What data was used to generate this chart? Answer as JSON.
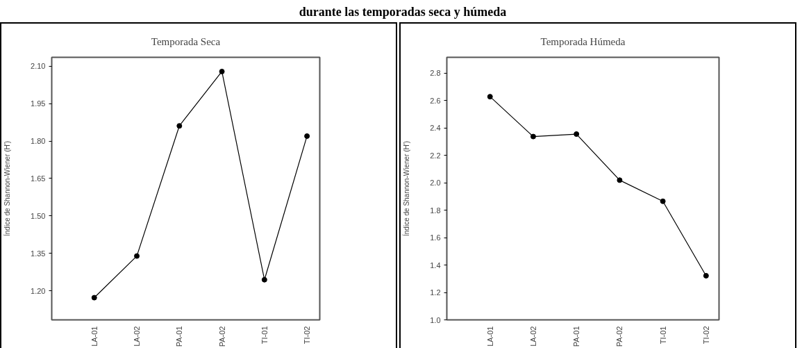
{
  "chart_data": [
    {
      "type": "line",
      "title": "Temporada Seca",
      "ylabel": "Índice de Shannon-Wiener (H')",
      "annotations": [
        "durante las temporadas seca y húmeda"
      ],
      "categories": [
        "LA-01",
        "LA-02",
        "PA-01",
        "PA-02",
        "TI-01",
        "TI-02"
      ],
      "series": [
        {
          "color": "#000000",
          "values": [
            1.172,
            1.339,
            1.861,
            2.079,
            1.244,
            1.82
          ]
        }
      ],
      "ylim": [
        1.083,
        2.136
      ],
      "yticks": [
        {
          "value": 1.2,
          "label": "1.20"
        },
        {
          "value": 1.35,
          "label": "1.35"
        },
        {
          "value": 1.5,
          "label": "1.50"
        },
        {
          "value": 1.65,
          "label": "1.65"
        },
        {
          "value": 1.8,
          "label": "1.80"
        },
        {
          "value": 1.95,
          "label": "1.95"
        },
        {
          "value": 2.1,
          "label": "2.10"
        }
      ],
      "marker": "circle",
      "grid": false
    },
    {
      "type": "line",
      "title": "Temporada Húmeda",
      "ylabel": "Índice de Shannon-Wiener (H')",
      "categories": [
        "LA-01",
        "LA-02",
        "PA-01",
        "PA-02",
        "TI-01",
        "TI-02"
      ],
      "series": [
        {
          "color": "#000000",
          "values": [
            2.628,
            2.337,
            2.355,
            2.019,
            1.865,
            1.322
          ]
        }
      ],
      "ylim": [
        1.0,
        2.915
      ],
      "yticks": [
        {
          "value": 1.0,
          "label": "1.0"
        },
        1.2,
        1.4,
        1.6,
        1.8,
        {
          "value": 2.0,
          "label": "2.0"
        },
        2.2,
        2.4,
        2.6,
        2.8
      ],
      "marker": "circle",
      "grid": false
    }
  ]
}
